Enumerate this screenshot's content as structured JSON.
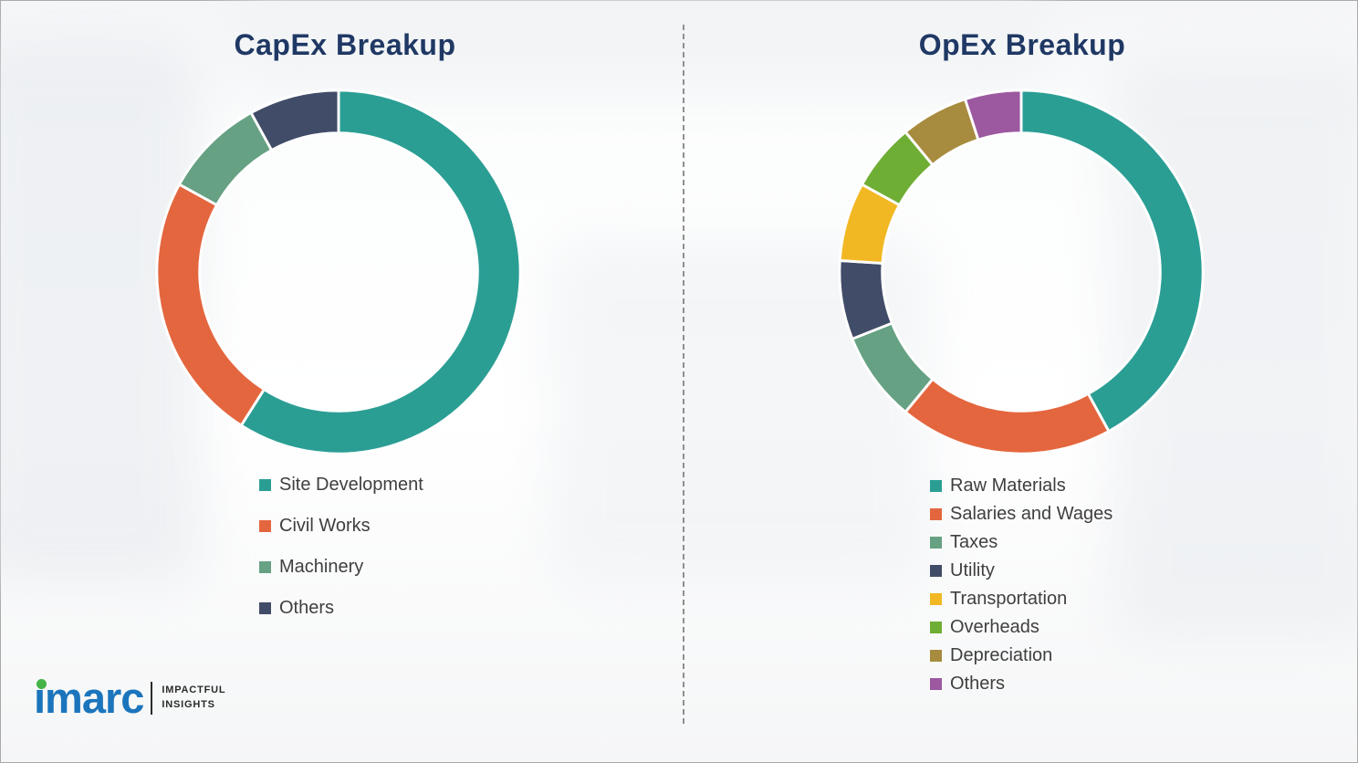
{
  "chart_data": [
    {
      "type": "pie",
      "donut": true,
      "title": "CapEx Breakup",
      "labels": [
        "Site Development",
        "Civil Works",
        "Machinery",
        "Others"
      ],
      "values": [
        59,
        24,
        9,
        8
      ],
      "colors": [
        "#2b9e94",
        "#e4663e",
        "#66a183",
        "#414c68"
      ],
      "legend_position": "bottom-left",
      "start_angle_deg": 0,
      "direction": "clockwise"
    },
    {
      "type": "pie",
      "donut": true,
      "title": "OpEx Breakup",
      "labels": [
        "Raw Materials",
        "Salaries and Wages",
        "Taxes",
        "Utility",
        "Transportation",
        "Overheads",
        "Depreciation",
        "Others"
      ],
      "values": [
        42,
        19,
        8,
        7,
        7,
        6,
        6,
        5
      ],
      "colors": [
        "#2b9e94",
        "#e4663e",
        "#66a183",
        "#414c68",
        "#f2b824",
        "#6fae35",
        "#a78b3e",
        "#9c59a0"
      ],
      "legend_position": "bottom-left",
      "start_angle_deg": 0,
      "direction": "clockwise"
    }
  ],
  "logo": {
    "brand": "imarc",
    "tagline_line1": "IMPACTFUL",
    "tagline_line2": "INSIGHTS",
    "brand_color": "#1b75bc",
    "dot_color": "#45b549"
  },
  "style": {
    "title_color": "#1f3864",
    "legend_text_color": "#3f3f3f",
    "divider_style": "dashed"
  }
}
